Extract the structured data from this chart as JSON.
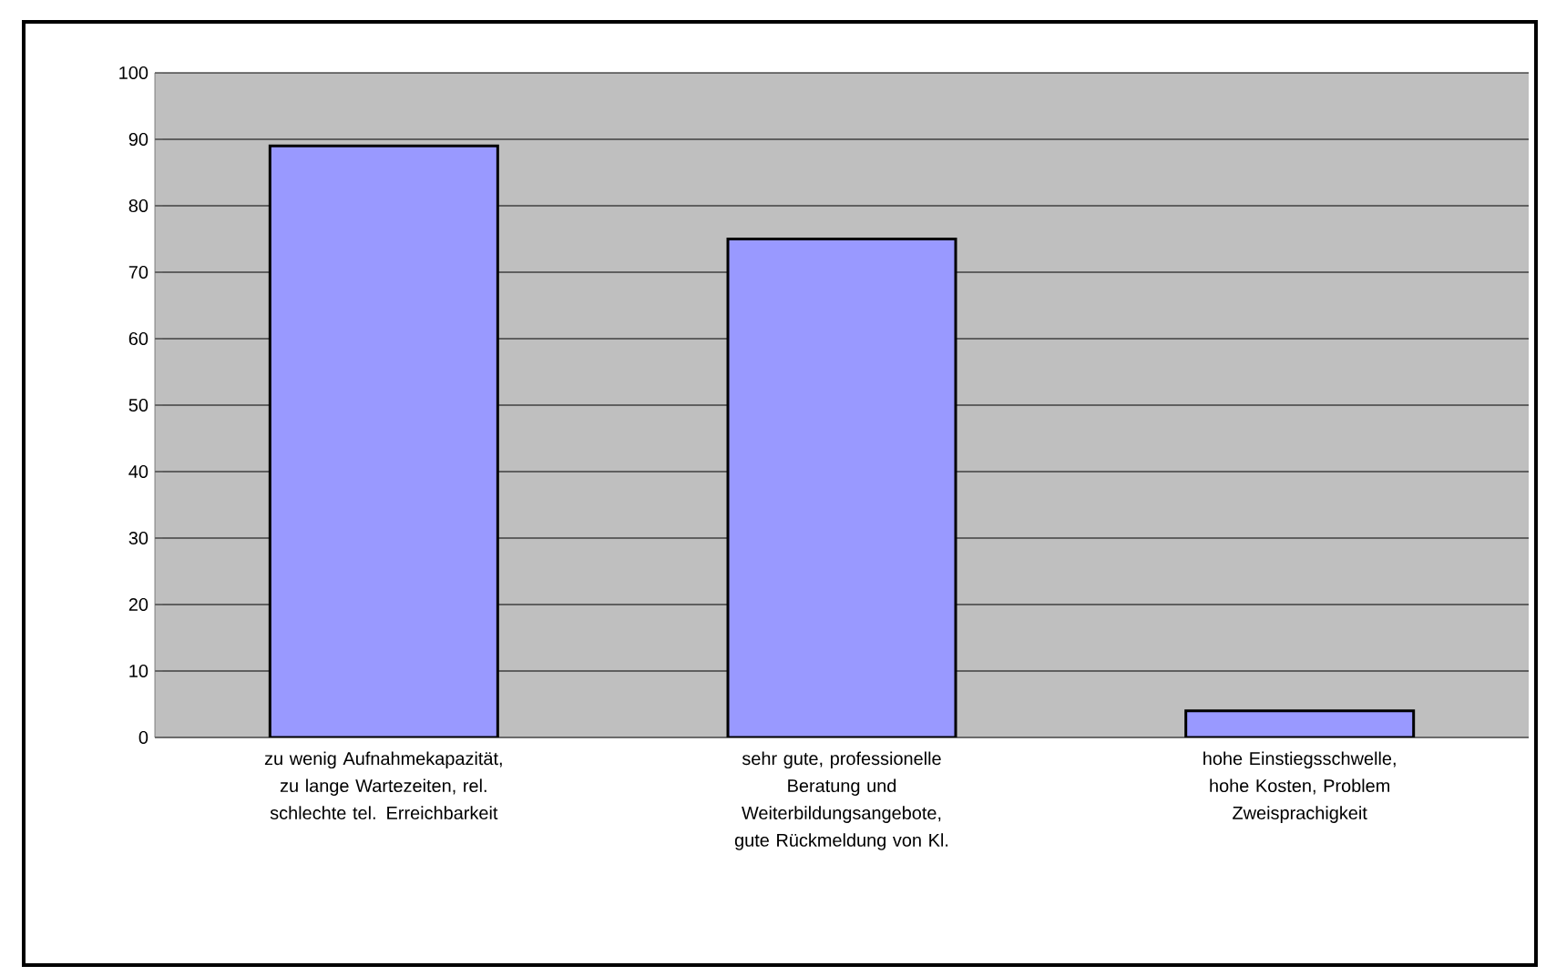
{
  "chart_data": {
    "type": "bar",
    "categories": [
      "zu wenig Aufnahmekapazität, zu lange Wartezeiten, rel. schlechte tel. Erreichbarkeit",
      "sehr gute, professionelle Beratung und Weiterbildungsangebote, gute Rückmeldung von Kl.",
      "hohe Einstiegsschwelle, hohe Kosten, Problem Zweisprachigkeit"
    ],
    "values": [
      89,
      75,
      4
    ],
    "color": "#9999ff",
    "ylim": [
      0,
      100
    ],
    "yticks": [
      0,
      10,
      20,
      30,
      40,
      50,
      60,
      70,
      80,
      90,
      100
    ],
    "grid": "y"
  }
}
